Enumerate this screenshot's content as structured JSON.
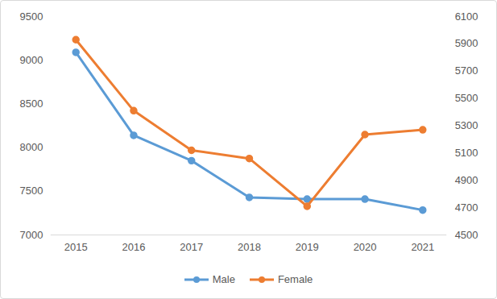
{
  "chart_data": {
    "type": "line",
    "categories": [
      "2015",
      "2016",
      "2017",
      "2018",
      "2019",
      "2020",
      "2021"
    ],
    "series": [
      {
        "name": "Male",
        "color": "#5b9bd5",
        "marker": "circle",
        "values": [
          9090,
          8140,
          7850,
          7430,
          7410,
          7410,
          7285
        ]
      },
      {
        "name": "Female",
        "color": "#ed7d31",
        "marker": "circle",
        "axis": "y2",
        "values": [
          5930,
          5410,
          5120,
          5060,
          4710,
          5235,
          5270
        ]
      }
    ],
    "ylim": [
      7000,
      9500
    ],
    "yticks": [
      7000,
      7500,
      8000,
      8500,
      9000,
      9500
    ],
    "y2lim": [
      4500,
      6100
    ],
    "y2ticks": [
      4500,
      4700,
      4900,
      5100,
      5300,
      5500,
      5700,
      5900,
      6100
    ],
    "grid": false,
    "legend": "bottom"
  }
}
